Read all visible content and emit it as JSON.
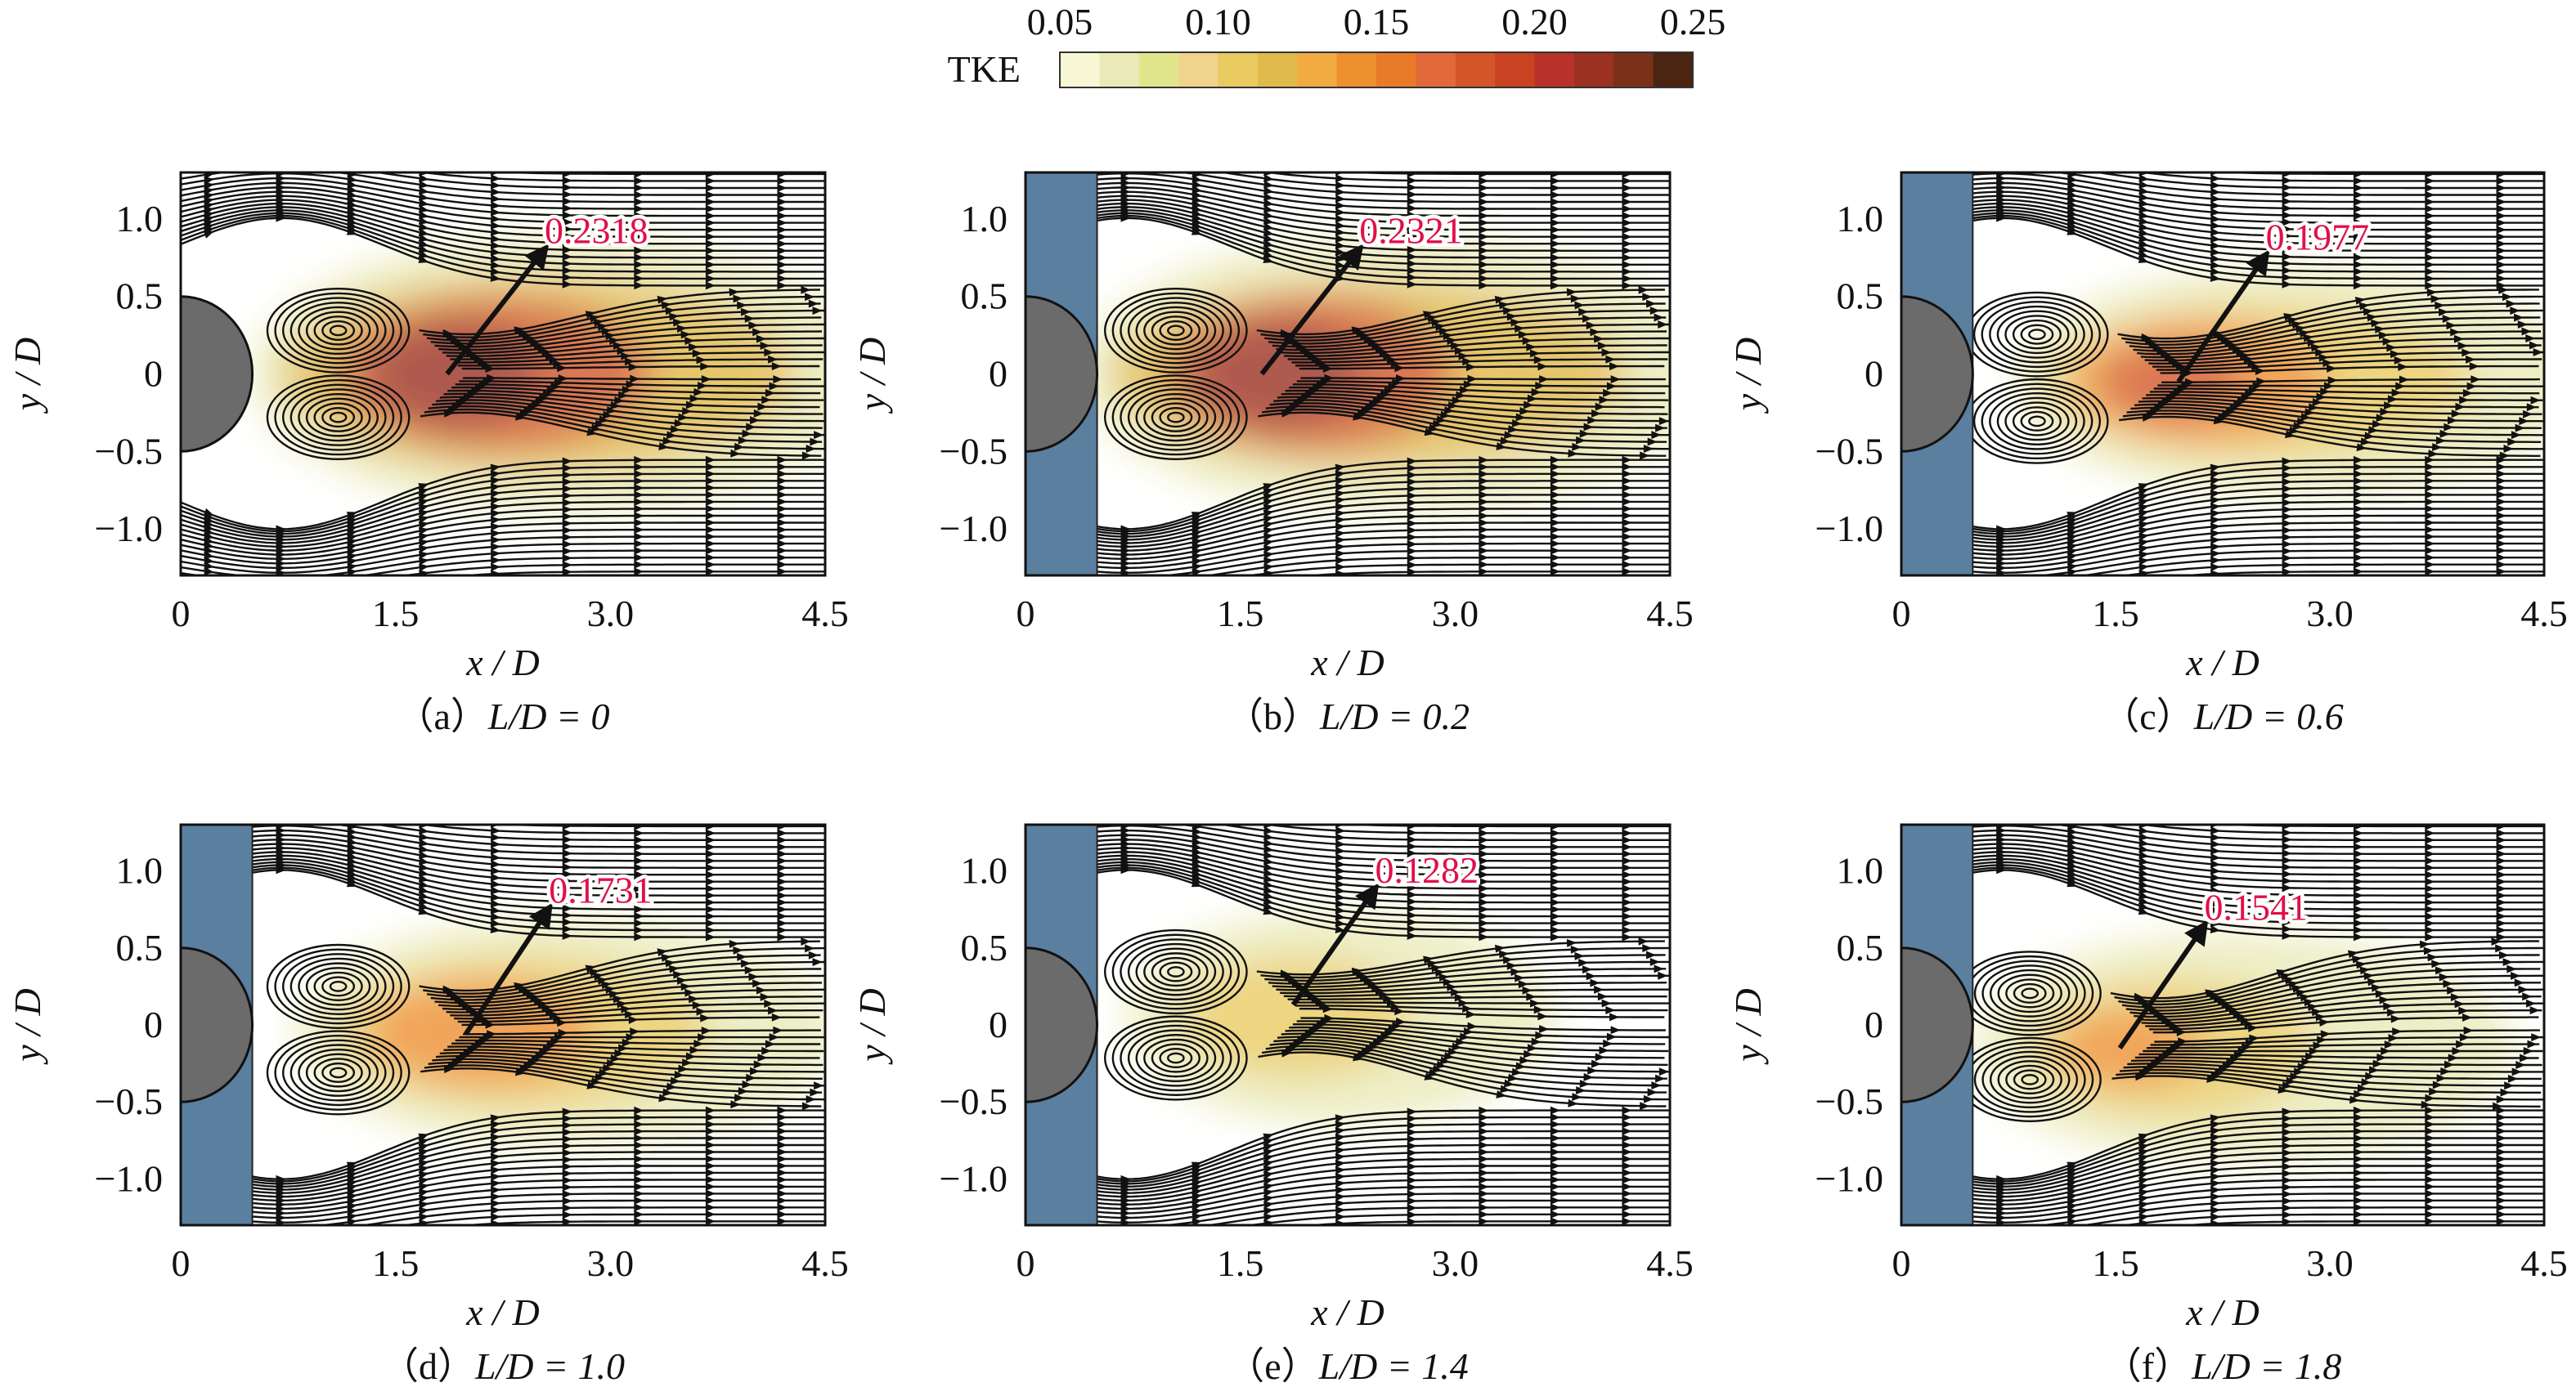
{
  "chart_data": {
    "type": "heatmap",
    "title": "",
    "colorbar": {
      "label": "TKE",
      "range": [
        0.05,
        0.25
      ],
      "ticks": [
        "0.05",
        "0.10",
        "0.15",
        "0.20",
        "0.25"
      ],
      "colors": [
        "#f8f8d6",
        "#e9eab8",
        "#e3e58c",
        "#f0d38c",
        "#e9cb62",
        "#e1ba4c",
        "#f2ab42",
        "#ee8f30",
        "#e97a28",
        "#e26a3a",
        "#d2562a",
        "#c94322",
        "#b93229",
        "#9b3121",
        "#7b3119",
        "#4b2511"
      ]
    },
    "axes": {
      "xlabel": "x / D",
      "ylabel": "y / D",
      "xlim": [
        0,
        4.5
      ],
      "ylim": [
        -1.3,
        1.3
      ],
      "xticks": [
        {
          "v": 0,
          "t": "0"
        },
        {
          "v": 1.5,
          "t": "1.5"
        },
        {
          "v": 3.0,
          "t": "3.0"
        },
        {
          "v": 4.5,
          "t": "4.5"
        }
      ],
      "yticks": [
        {
          "v": 1.0,
          "t": "1.0"
        },
        {
          "v": 0.5,
          "t": "0.5"
        },
        {
          "v": 0,
          "t": "0"
        },
        {
          "v": -0.5,
          "t": "−0.5"
        },
        {
          "v": -1.0,
          "t": "−1.0"
        }
      ]
    },
    "panels": [
      {
        "label": "（a）",
        "expr": "L/D = 0",
        "LD": 0,
        "plate": false,
        "max_tke": "0.2318",
        "arrow": {
          "from": [
            1.86,
            0
          ],
          "to": [
            2.53,
            0.79
          ]
        },
        "vortex_x": 1.1,
        "tke": [
          {
            "cx": 2.7,
            "cy": 0,
            "rx": 2.2,
            "ry": 0.9,
            "level": 0.07
          },
          {
            "cx": 2.5,
            "cy": 0,
            "rx": 1.8,
            "ry": 0.65,
            "level": 0.12
          },
          {
            "cx": 2.2,
            "cy": 0,
            "rx": 1.1,
            "ry": 0.5,
            "level": 0.18
          },
          {
            "cx": 1.9,
            "cy": 0,
            "rx": 0.6,
            "ry": 0.35,
            "level": 0.22
          }
        ]
      },
      {
        "label": "（b）",
        "expr": "L/D = 0.2",
        "LD": 0.2,
        "plate": true,
        "max_tke": "0.2321",
        "arrow": {
          "from": [
            1.65,
            0
          ],
          "to": [
            2.32,
            0.79
          ]
        },
        "vortex_x": 1.05,
        "tke": [
          {
            "cx": 2.6,
            "cy": 0,
            "rx": 2.2,
            "ry": 0.9,
            "level": 0.07
          },
          {
            "cx": 2.4,
            "cy": 0,
            "rx": 1.8,
            "ry": 0.62,
            "level": 0.12
          },
          {
            "cx": 2.0,
            "cy": 0,
            "rx": 1.0,
            "ry": 0.5,
            "level": 0.18
          },
          {
            "cx": 1.75,
            "cy": 0,
            "rx": 0.6,
            "ry": 0.35,
            "level": 0.22
          }
        ]
      },
      {
        "label": "（c）",
        "expr": "L/D = 0.6",
        "LD": 0.6,
        "plate": true,
        "max_tke": "0.1977",
        "arrow": {
          "from": [
            1.94,
            -0.05
          ],
          "to": [
            2.54,
            0.75
          ]
        },
        "vortex_x": 0.95,
        "tke": [
          {
            "cx": 2.8,
            "cy": -0.05,
            "rx": 2.0,
            "ry": 0.75,
            "level": 0.07
          },
          {
            "cx": 2.5,
            "cy": -0.05,
            "rx": 1.5,
            "ry": 0.5,
            "level": 0.11
          },
          {
            "cx": 2.1,
            "cy": -0.05,
            "rx": 0.9,
            "ry": 0.4,
            "level": 0.15
          },
          {
            "cx": 1.9,
            "cy": -0.05,
            "rx": 0.5,
            "ry": 0.25,
            "level": 0.18
          }
        ]
      },
      {
        "label": "（d）",
        "expr": "L/D = 1.0",
        "LD": 1.0,
        "plate": true,
        "max_tke": "0.1731",
        "arrow": {
          "from": [
            1.99,
            -0.06
          ],
          "to": [
            2.56,
            0.74
          ]
        },
        "vortex_x": 1.1,
        "tke": [
          {
            "cx": 2.7,
            "cy": -0.05,
            "rx": 1.9,
            "ry": 0.75,
            "level": 0.07
          },
          {
            "cx": 2.4,
            "cy": -0.05,
            "rx": 1.3,
            "ry": 0.5,
            "level": 0.11
          },
          {
            "cx": 2.1,
            "cy": -0.05,
            "rx": 0.8,
            "ry": 0.35,
            "level": 0.15
          }
        ]
      },
      {
        "label": "（e）",
        "expr": "L/D = 1.4",
        "LD": 1.4,
        "plate": true,
        "max_tke": "0.1282",
        "arrow": {
          "from": [
            1.87,
            0.13
          ],
          "to": [
            2.43,
            0.87
          ]
        },
        "vortex_x": 1.05,
        "tke": [
          {
            "cx": 2.2,
            "cy": 0.05,
            "rx": 1.5,
            "ry": 0.7,
            "level": 0.07
          },
          {
            "cx": 1.9,
            "cy": 0.05,
            "rx": 0.8,
            "ry": 0.4,
            "level": 0.1
          }
        ]
      },
      {
        "label": "（f）",
        "expr": "L/D = 1.8",
        "LD": 1.8,
        "plate": true,
        "max_tke": "0.1541",
        "arrow": {
          "from": [
            1.53,
            -0.15
          ],
          "to": [
            2.11,
            0.63
          ]
        },
        "vortex_x": 0.9,
        "tke": [
          {
            "cx": 2.4,
            "cy": -0.15,
            "rx": 1.9,
            "ry": 0.75,
            "level": 0.07
          },
          {
            "cx": 1.9,
            "cy": -0.15,
            "rx": 1.0,
            "ry": 0.45,
            "level": 0.11
          },
          {
            "cx": 1.6,
            "cy": -0.15,
            "rx": 0.5,
            "ry": 0.25,
            "level": 0.14
          }
        ]
      }
    ]
  }
}
